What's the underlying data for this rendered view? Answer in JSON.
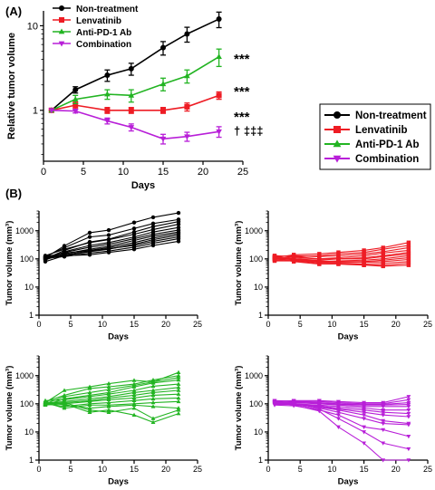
{
  "panel_labels": {
    "a": "(A)",
    "b": "(B)"
  },
  "colors": {
    "non": "#000000",
    "len": "#ee1c24",
    "ab": "#22b422",
    "combo": "#b81fd8"
  },
  "chart_data": [
    {
      "type": "line",
      "panel": "A",
      "xlabel": "Days",
      "ylabel": "Relative tumor volume",
      "xlim": [
        0,
        25
      ],
      "xticks": [
        0,
        5,
        10,
        15,
        20,
        25
      ],
      "yscale": "log",
      "ylim": [
        0.25,
        15
      ],
      "yticks": [
        {
          "v": 1,
          "label": "1"
        },
        {
          "v": 10,
          "label": "10"
        }
      ],
      "legend_placement": "top-left",
      "x": [
        1,
        4,
        8,
        11,
        15,
        18,
        22
      ],
      "series": [
        {
          "name": "Non-treatment",
          "color": "#000000",
          "marker": "circle",
          "values": [
            1.0,
            1.75,
            2.6,
            3.1,
            5.5,
            8.0,
            12.0
          ],
          "errors": [
            0.0,
            0.15,
            0.4,
            0.5,
            1.0,
            1.6,
            2.5
          ]
        },
        {
          "name": "Lenvatinib",
          "color": "#ee1c24",
          "marker": "square",
          "values": [
            1.0,
            1.15,
            1.0,
            1.0,
            1.0,
            1.1,
            1.5
          ],
          "errors": [
            0.0,
            0.1,
            0.08,
            0.08,
            0.08,
            0.12,
            0.15
          ]
        },
        {
          "name": "Anti-PD-1 Ab",
          "color": "#22b422",
          "marker": "triangle-up",
          "values": [
            1.0,
            1.35,
            1.55,
            1.5,
            2.05,
            2.55,
            4.3
          ],
          "errors": [
            0.0,
            0.15,
            0.2,
            0.25,
            0.35,
            0.45,
            1.0
          ]
        },
        {
          "name": "Combination",
          "color": "#b81fd8",
          "marker": "triangle-down",
          "values": [
            1.0,
            0.98,
            0.75,
            0.63,
            0.46,
            0.49,
            0.56
          ],
          "errors": [
            0.0,
            0.05,
            0.06,
            0.06,
            0.06,
            0.06,
            0.08
          ]
        }
      ],
      "annotations": [
        "***",
        "***",
        "***",
        "† ‡‡‡"
      ]
    },
    {
      "type": "line",
      "panel": "B-1",
      "xlabel": "Days",
      "ylabel": "Tumor volume (mm³)",
      "color": "#000000",
      "marker": "circle",
      "xlim": [
        0,
        25
      ],
      "xticks": [
        0,
        5,
        10,
        15,
        20,
        25
      ],
      "yscale": "log",
      "ylim": [
        1,
        5000
      ],
      "yticks": [
        {
          "v": 1,
          "label": "1"
        },
        {
          "v": 10,
          "label": "10"
        },
        {
          "v": 100,
          "label": "100"
        },
        {
          "v": 1000,
          "label": "1000"
        }
      ],
      "x": [
        1,
        4,
        8,
        11,
        15,
        18,
        22
      ],
      "series": [
        {
          "values": [
            110,
            290,
            850,
            1050,
            1950,
            3000,
            4300
          ]
        },
        {
          "values": [
            120,
            250,
            600,
            700,
            1200,
            1800,
            2500
          ]
        },
        {
          "values": [
            100,
            200,
            400,
            500,
            900,
            1400,
            2100
          ]
        },
        {
          "values": [
            130,
            220,
            380,
            480,
            750,
            1100,
            1700
          ]
        },
        {
          "values": [
            90,
            180,
            300,
            380,
            600,
            900,
            1300
          ]
        },
        {
          "values": [
            110,
            170,
            260,
            330,
            520,
            750,
            1050
          ]
        },
        {
          "values": [
            100,
            150,
            220,
            280,
            450,
            650,
            900
          ]
        },
        {
          "values": [
            120,
            160,
            200,
            250,
            380,
            550,
            800
          ]
        },
        {
          "values": [
            80,
            130,
            180,
            220,
            330,
            480,
            700
          ]
        },
        {
          "values": [
            95,
            140,
            190,
            230,
            300,
            420,
            600
          ]
        },
        {
          "values": [
            105,
            120,
            160,
            190,
            260,
            360,
            520
          ]
        },
        {
          "values": [
            115,
            130,
            140,
            170,
            220,
            300,
            420
          ]
        }
      ]
    },
    {
      "type": "line",
      "panel": "B-2",
      "xlabel": "Days",
      "ylabel": "Tumor volume (mm³)",
      "color": "#ee1c24",
      "marker": "square",
      "xlim": [
        0,
        25
      ],
      "xticks": [
        0,
        5,
        10,
        15,
        20,
        25
      ],
      "yscale": "log",
      "ylim": [
        1,
        5000
      ],
      "yticks": [
        {
          "v": 1,
          "label": "1"
        },
        {
          "v": 10,
          "label": "10"
        },
        {
          "v": 100,
          "label": "100"
        },
        {
          "v": 1000,
          "label": "1000"
        }
      ],
      "x": [
        1,
        4,
        8,
        11,
        15,
        18,
        22
      ],
      "series": [
        {
          "values": [
            110,
            140,
            150,
            170,
            200,
            250,
            380
          ]
        },
        {
          "values": [
            100,
            120,
            130,
            150,
            170,
            220,
            300
          ]
        },
        {
          "values": [
            120,
            130,
            120,
            130,
            150,
            180,
            250
          ]
        },
        {
          "values": [
            95,
            110,
            100,
            110,
            130,
            160,
            200
          ]
        },
        {
          "values": [
            105,
            100,
            90,
            100,
            110,
            130,
            170
          ]
        },
        {
          "values": [
            130,
            120,
            100,
            100,
            100,
            120,
            150
          ]
        },
        {
          "values": [
            90,
            95,
            80,
            85,
            90,
            100,
            130
          ]
        },
        {
          "values": [
            115,
            100,
            85,
            80,
            80,
            90,
            110
          ]
        },
        {
          "values": [
            100,
            90,
            75,
            75,
            75,
            80,
            95
          ]
        },
        {
          "values": [
            85,
            85,
            70,
            70,
            65,
            70,
            80
          ]
        },
        {
          "values": [
            120,
            95,
            80,
            70,
            60,
            60,
            70
          ]
        },
        {
          "values": [
            110,
            80,
            65,
            65,
            60,
            55,
            60
          ]
        }
      ]
    },
    {
      "type": "line",
      "panel": "B-3",
      "xlabel": "Days",
      "ylabel": "Tumor volume (mm³)",
      "color": "#22b422",
      "marker": "triangle-up",
      "xlim": [
        0,
        25
      ],
      "xticks": [
        0,
        5,
        10,
        15,
        20,
        25
      ],
      "yscale": "log",
      "ylim": [
        1,
        5000
      ],
      "yticks": [
        {
          "v": 1,
          "label": "1"
        },
        {
          "v": 10,
          "label": "10"
        },
        {
          "v": 100,
          "label": "100"
        },
        {
          "v": 1000,
          "label": "1000"
        }
      ],
      "x": [
        1,
        4,
        8,
        11,
        15,
        18,
        22
      ],
      "series": [
        {
          "values": [
            110,
            300,
            400,
            520,
            680,
            600,
            1300
          ]
        },
        {
          "values": [
            120,
            200,
            350,
            400,
            500,
            700,
            1000
          ]
        },
        {
          "values": [
            100,
            180,
            250,
            320,
            450,
            600,
            850
          ]
        },
        {
          "values": [
            90,
            150,
            200,
            250,
            400,
            550,
            700
          ]
        },
        {
          "values": [
            130,
            140,
            180,
            220,
            300,
            420,
            500
          ]
        },
        {
          "values": [
            105,
            120,
            150,
            180,
            250,
            300,
            380
          ]
        },
        {
          "values": [
            95,
            110,
            130,
            160,
            200,
            250,
            300
          ]
        },
        {
          "values": [
            115,
            100,
            120,
            140,
            160,
            200,
            220
          ]
        },
        {
          "values": [
            100,
            80,
            100,
            110,
            130,
            150,
            160
          ]
        },
        {
          "values": [
            110,
            70,
            90,
            90,
            100,
            110,
            120
          ]
        },
        {
          "values": [
            120,
            90,
            70,
            80,
            90,
            80,
            70
          ]
        },
        {
          "values": [
            100,
            110,
            60,
            50,
            70,
            30,
            60
          ]
        },
        {
          "values": [
            90,
            100,
            50,
            60,
            40,
            22,
            45
          ]
        }
      ]
    },
    {
      "type": "line",
      "panel": "B-4",
      "xlabel": "Days",
      "ylabel": "Tumor volume (mm³)",
      "color": "#b81fd8",
      "marker": "triangle-down",
      "xlim": [
        0,
        25
      ],
      "xticks": [
        0,
        5,
        10,
        15,
        20,
        25
      ],
      "yscale": "log",
      "ylim": [
        1,
        5000
      ],
      "yticks": [
        {
          "v": 1,
          "label": "1"
        },
        {
          "v": 10,
          "label": "10"
        },
        {
          "v": 100,
          "label": "100"
        },
        {
          "v": 1000,
          "label": "1000"
        }
      ],
      "x": [
        1,
        4,
        8,
        11,
        15,
        18,
        22
      ],
      "series": [
        {
          "values": [
            120,
            130,
            130,
            120,
            110,
            110,
            180
          ]
        },
        {
          "values": [
            110,
            120,
            120,
            110,
            100,
            100,
            140
          ]
        },
        {
          "values": [
            100,
            115,
            110,
            100,
            95,
            95,
            110
          ]
        },
        {
          "values": [
            130,
            125,
            105,
            95,
            90,
            90,
            95
          ]
        },
        {
          "values": [
            105,
            110,
            100,
            90,
            80,
            80,
            80
          ]
        },
        {
          "values": [
            115,
            100,
            90,
            80,
            70,
            60,
            60
          ]
        },
        {
          "values": [
            95,
            95,
            85,
            70,
            60,
            50,
            45
          ]
        },
        {
          "values": [
            110,
            90,
            80,
            65,
            50,
            40,
            35
          ]
        },
        {
          "values": [
            100,
            100,
            75,
            60,
            40,
            25,
            20
          ]
        },
        {
          "values": [
            120,
            105,
            70,
            50,
            30,
            20,
            18
          ]
        },
        {
          "values": [
            90,
            85,
            60,
            40,
            15,
            12,
            7
          ]
        },
        {
          "values": [
            105,
            95,
            65,
            30,
            10,
            4,
            2.5
          ]
        },
        {
          "values": [
            115,
            90,
            55,
            15,
            4,
            1,
            1
          ]
        }
      ]
    }
  ]
}
